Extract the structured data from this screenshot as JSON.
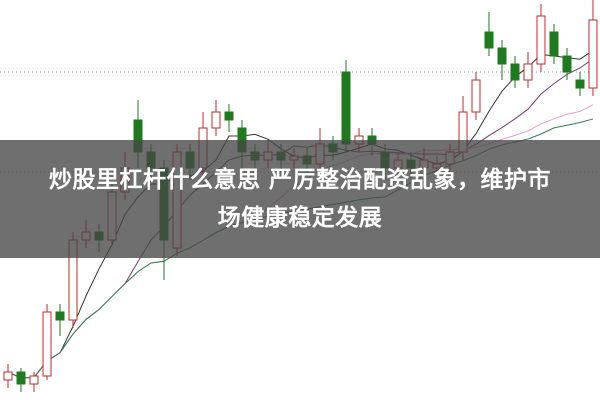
{
  "headline": {
    "line1": "炒股里杠杆什么意思 严厉整治配资乱象，维护市",
    "line2": "场健康稳定发展"
  },
  "colors": {
    "up": "#c0282b",
    "down": "#1f7a1f",
    "overlay": "#464646",
    "ma5": "#333333",
    "ma10": "#7a3d6e",
    "ma20": "#e0a0d8",
    "ma30": "#2f7d4f"
  },
  "chart_data": {
    "type": "candlestick",
    "title": "",
    "grid": "dotted horizontal",
    "ohlc_fields": [
      "open",
      "close",
      "high",
      "low"
    ],
    "candles": [
      [
        5,
        7,
        9,
        3
      ],
      [
        7,
        4,
        8,
        2
      ],
      [
        4,
        6,
        7,
        2
      ],
      [
        6,
        22,
        24,
        5
      ],
      [
        22,
        20,
        24,
        16
      ],
      [
        20,
        40,
        42,
        18
      ],
      [
        40,
        42,
        45,
        38
      ],
      [
        42,
        40,
        44,
        37
      ],
      [
        40,
        52,
        54,
        39
      ],
      [
        52,
        58,
        62,
        50
      ],
      [
        70,
        62,
        75,
        58
      ],
      [
        62,
        58,
        64,
        55
      ],
      [
        58,
        40,
        60,
        30
      ],
      [
        38,
        62,
        64,
        36
      ],
      [
        62,
        58,
        64,
        55
      ],
      [
        58,
        68,
        72,
        56
      ],
      [
        68,
        72,
        75,
        66
      ],
      [
        72,
        70,
        74,
        67
      ],
      [
        68,
        62,
        70,
        58
      ],
      [
        62,
        60,
        64,
        57
      ],
      [
        60,
        62,
        65,
        58
      ],
      [
        62,
        60,
        64,
        57
      ],
      [
        60,
        61,
        63,
        58
      ],
      [
        61,
        59,
        63,
        56
      ],
      [
        59,
        64,
        68,
        57
      ],
      [
        64,
        62,
        66,
        60
      ],
      [
        82,
        64,
        85,
        62
      ],
      [
        64,
        66,
        68,
        62
      ],
      [
        66,
        64,
        68,
        61
      ],
      [
        62,
        58,
        64,
        55
      ],
      [
        58,
        60,
        62,
        56
      ],
      [
        60,
        58,
        62,
        55
      ],
      [
        58,
        60,
        63,
        56
      ],
      [
        58,
        59,
        61,
        56
      ],
      [
        59,
        62,
        64,
        57
      ],
      [
        62,
        72,
        76,
        60
      ],
      [
        72,
        80,
        82,
        70
      ],
      [
        92,
        88,
        97,
        86
      ],
      [
        88,
        84,
        90,
        80
      ],
      [
        84,
        80,
        86,
        78
      ],
      [
        80,
        84,
        87,
        78
      ],
      [
        84,
        96,
        99,
        82
      ],
      [
        92,
        86,
        94,
        84
      ],
      [
        86,
        82,
        88,
        80
      ],
      [
        80,
        78,
        82,
        76
      ],
      [
        78,
        95,
        100,
        76
      ]
    ],
    "moving_averages": [
      5,
      10,
      20,
      30
    ]
  }
}
